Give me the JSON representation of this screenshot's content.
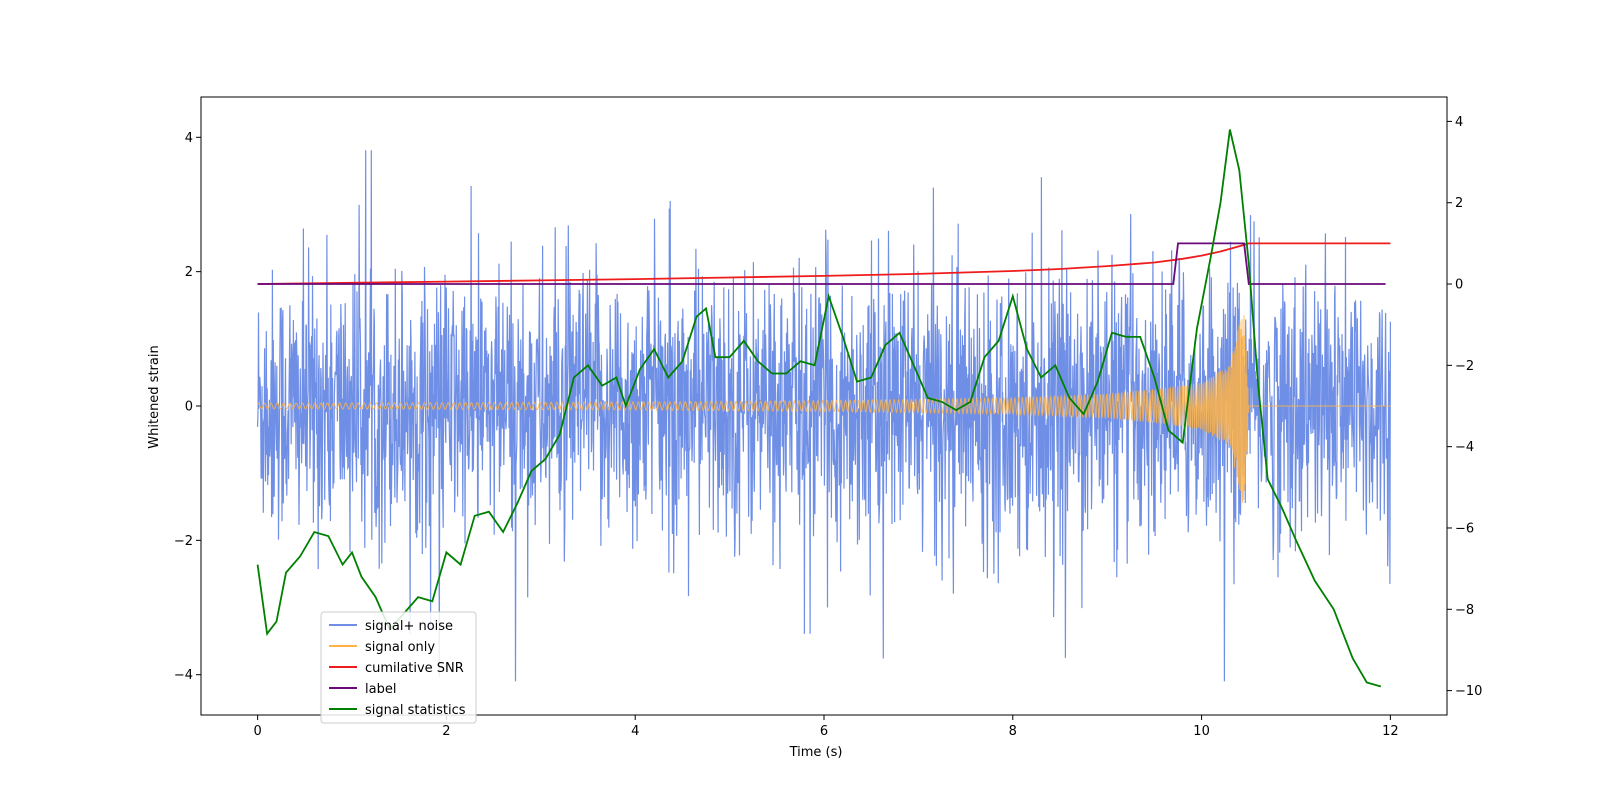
{
  "chart_data": {
    "type": "line",
    "title": "",
    "xlabel": "Time (s)",
    "ylabel": "Whitened strain",
    "xlim": [
      -0.6,
      12.6
    ],
    "ylim": [
      -4.6,
      4.6
    ],
    "y2lim": [
      -10.6,
      4.6
    ],
    "xticks": [
      0,
      2,
      4,
      6,
      8,
      10,
      12
    ],
    "xtick_labels": [
      "0",
      "2",
      "4",
      "6",
      "8",
      "10",
      "12"
    ],
    "yticks": [
      -4,
      -2,
      0,
      2,
      4
    ],
    "ytick_labels": [
      "−4",
      "−2",
      "0",
      "2",
      "4"
    ],
    "y2ticks": [
      -10,
      -8,
      -6,
      -4,
      -2,
      0,
      2,
      4
    ],
    "y2tick_labels": [
      "−10",
      "−8",
      "−6",
      "−4",
      "−2",
      "0",
      "2",
      "4"
    ],
    "legend_position": "lower-left",
    "series": [
      {
        "name": "signal+ noise",
        "color": "#6f8fe6",
        "axis": "left",
        "description": "whitened noise plus chirp, approx. Gaussian with std ~1 and peaks reaching about +/-4",
        "range": [
          -4.1,
          4.2
        ]
      },
      {
        "name": "signal only",
        "color": "#ffb347",
        "axis": "left",
        "description": "chirp waveform growing in amplitude and frequency, merger at ~10.5 s",
        "amplitude_points": [
          [
            0,
            0.04
          ],
          [
            2,
            0.05
          ],
          [
            4,
            0.06
          ],
          [
            6,
            0.08
          ],
          [
            8,
            0.12
          ],
          [
            9,
            0.18
          ],
          [
            9.5,
            0.25
          ],
          [
            10,
            0.35
          ],
          [
            10.3,
            0.6
          ],
          [
            10.45,
            1.55
          ],
          [
            10.5,
            0.0
          ],
          [
            12,
            0.0
          ]
        ]
      },
      {
        "name": "cumilative SNR",
        "color": "#ee1c1c",
        "axis": "right",
        "x": [
          0,
          1,
          2,
          3,
          4,
          5,
          6,
          7,
          8,
          8.5,
          9,
          9.5,
          9.8,
          10.0,
          10.2,
          10.4,
          10.5,
          11,
          12
        ],
        "y": [
          0.0,
          0.03,
          0.06,
          0.09,
          0.12,
          0.16,
          0.2,
          0.25,
          0.32,
          0.37,
          0.44,
          0.53,
          0.62,
          0.7,
          0.8,
          0.93,
          1.0,
          1.0,
          1.0
        ]
      },
      {
        "name": "label",
        "color": "#6a0a7a",
        "axis": "right",
        "x": [
          0,
          9.7,
          9.75,
          10.45,
          10.5,
          11.95
        ],
        "y": [
          0,
          0,
          1,
          1,
          0,
          0
        ]
      },
      {
        "name": "signal statistics",
        "color": "#008000",
        "axis": "right",
        "x": [
          0,
          0.1,
          0.2,
          0.3,
          0.45,
          0.6,
          0.75,
          0.9,
          1.0,
          1.1,
          1.25,
          1.4,
          1.55,
          1.7,
          1.85,
          2.0,
          2.15,
          2.3,
          2.45,
          2.6,
          2.75,
          2.9,
          3.05,
          3.2,
          3.35,
          3.5,
          3.65,
          3.8,
          3.9,
          4.05,
          4.2,
          4.35,
          4.5,
          4.65,
          4.75,
          4.85,
          5.0,
          5.15,
          5.3,
          5.45,
          5.6,
          5.75,
          5.9,
          6.05,
          6.2,
          6.35,
          6.5,
          6.65,
          6.8,
          6.95,
          7.1,
          7.25,
          7.4,
          7.55,
          7.7,
          7.85,
          8.0,
          8.15,
          8.3,
          8.45,
          8.6,
          8.75,
          8.9,
          9.05,
          9.2,
          9.35,
          9.5,
          9.65,
          9.8,
          9.95,
          10.1,
          10.2,
          10.3,
          10.4,
          10.5,
          10.6,
          10.7,
          10.85,
          11.0,
          11.2,
          11.4,
          11.6,
          11.75,
          11.9
        ],
        "y": [
          -6.9,
          -8.6,
          -8.3,
          -7.1,
          -6.7,
          -6.1,
          -6.2,
          -6.9,
          -6.6,
          -7.2,
          -7.7,
          -8.5,
          -8.1,
          -7.7,
          -7.8,
          -6.6,
          -6.9,
          -5.7,
          -5.6,
          -6.1,
          -5.4,
          -4.6,
          -4.3,
          -3.7,
          -2.3,
          -2.0,
          -2.5,
          -2.3,
          -3.0,
          -2.1,
          -1.6,
          -2.3,
          -1.9,
          -0.8,
          -0.6,
          -1.8,
          -1.8,
          -1.4,
          -1.9,
          -2.2,
          -2.2,
          -1.9,
          -2.0,
          -0.3,
          -1.3,
          -2.4,
          -2.3,
          -1.5,
          -1.2,
          -2.0,
          -2.8,
          -2.9,
          -3.1,
          -2.9,
          -1.8,
          -1.4,
          -0.3,
          -1.6,
          -2.3,
          -2.0,
          -2.8,
          -3.2,
          -2.4,
          -1.2,
          -1.3,
          -1.3,
          -2.3,
          -3.6,
          -3.9,
          -1.1,
          0.7,
          2.0,
          3.8,
          2.8,
          0.5,
          -2.5,
          -4.8,
          -5.5,
          -6.3,
          -7.3,
          -8.0,
          -9.2,
          -9.8,
          -9.9
        ]
      }
    ]
  }
}
